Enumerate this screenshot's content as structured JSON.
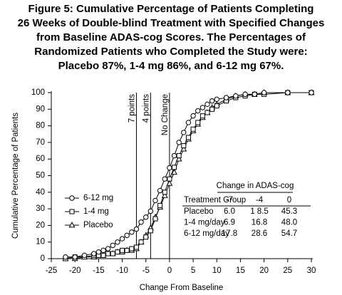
{
  "chart_data": {
    "type": "line",
    "title": [
      "Figure 5:  Cumulative Percentage of Patients Completing",
      "26 Weeks of Double-blind Treatment with Specified Changes",
      "from Baseline ADAS-cog Scores. The Percentages of",
      "Randomized Patients who Completed the Study were:",
      "Placebo 87%, 1-4 mg 86%, and 6-12 mg 67%."
    ],
    "x_label": "Change From Baseline",
    "y_label": "Cumulative Percentage of Patients",
    "x": [
      -22,
      -20,
      -18,
      -16,
      -15,
      -14,
      -13,
      -12,
      -11,
      -10,
      -9,
      -8,
      -7,
      -6,
      -5,
      -4,
      -3,
      -2,
      -1,
      0,
      1,
      2,
      3,
      4,
      5,
      6,
      7,
      8,
      9,
      10,
      12,
      14,
      16,
      18,
      20,
      25,
      30
    ],
    "series": [
      {
        "name": "6-12 mg",
        "color": "#000000",
        "marker": "circle",
        "values": [
          1,
          1,
          2,
          3,
          4,
          5,
          6,
          8,
          10,
          12,
          14,
          16,
          17.8,
          22,
          25,
          28.6,
          35,
          41,
          48,
          54.7,
          62,
          70,
          76,
          82,
          86,
          89,
          91,
          93,
          95,
          96,
          97,
          98,
          99,
          99,
          100,
          100,
          100
        ]
      },
      {
        "name": "1-4 mg",
        "color": "#000000",
        "marker": "square",
        "values": [
          0,
          1,
          1,
          2,
          2,
          2,
          3,
          3,
          4,
          5,
          5,
          6,
          6.9,
          10,
          13,
          16.8,
          24,
          32,
          40,
          48,
          55,
          62,
          68,
          73,
          78,
          82,
          86,
          88,
          90,
          92,
          95,
          97,
          98,
          99,
          99,
          100,
          100
        ]
      },
      {
        "name": "Placebo",
        "color": "#000000",
        "marker": "triangle",
        "values": [
          0,
          0,
          1,
          1,
          2,
          2,
          3,
          3,
          4,
          4,
          5,
          5,
          6,
          10,
          14,
          18.5,
          25,
          31,
          38,
          45.3,
          52,
          60,
          66,
          72,
          77,
          81,
          85,
          88,
          91,
          93,
          96,
          98,
          99,
          99,
          100,
          100,
          100
        ]
      }
    ],
    "annotations": [
      {
        "x": -7,
        "label": "7 points"
      },
      {
        "x": -4,
        "label": "4 points"
      },
      {
        "x": 0,
        "label": "No Change"
      }
    ],
    "xlim": [
      -25,
      30
    ],
    "xticks": [
      -25,
      -20,
      -15,
      -10,
      -5,
      0,
      5,
      10,
      15,
      20,
      25,
      30
    ],
    "ylim": [
      0,
      100
    ],
    "yticks": [
      0,
      10,
      20,
      30,
      40,
      50,
      60,
      70,
      80,
      90,
      100
    ],
    "legend": "left",
    "table": {
      "header": "Change in ADAS-cog",
      "columns": [
        "Treatment Group",
        "-7",
        "-4",
        "0"
      ],
      "rows": [
        [
          "Placebo",
          "6.0",
          "1 8.5",
          "45.3"
        ],
        [
          "1-4 mg/day",
          "6.9",
          "16.8",
          "48.0"
        ],
        [
          "6-12 mg/day",
          "17.8",
          "28.6",
          "54.7"
        ]
      ]
    }
  }
}
